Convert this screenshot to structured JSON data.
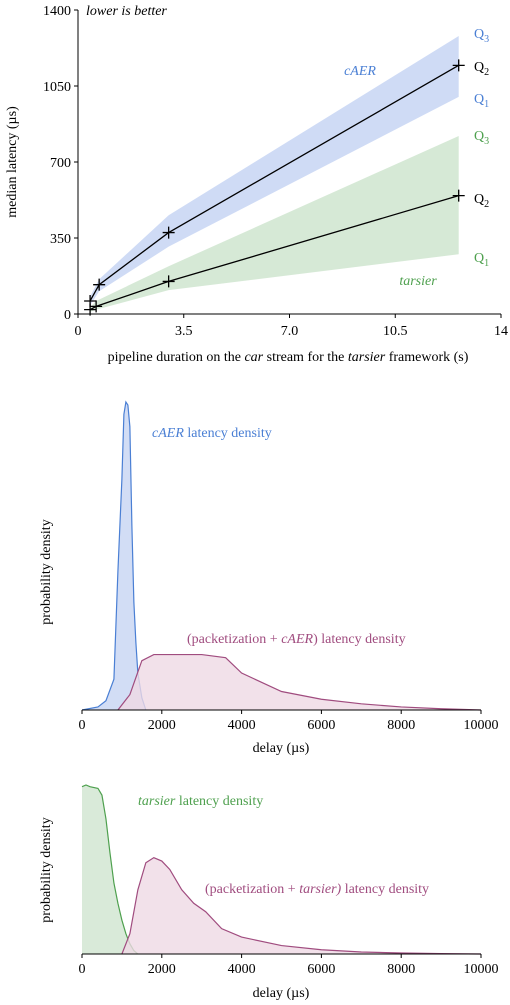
{
  "colors": {
    "caer": "#4a7fd4",
    "caer_fill": "#c7d5f3",
    "tarsier": "#4ea04e",
    "tarsier_fill": "#cfe5cf",
    "pack": "#a04c7f",
    "pack_fill": "#efd9e5",
    "axis": "#000000"
  },
  "chart_data": [
    {
      "type": "line",
      "annotation": "lower is better",
      "xlabel": {
        "pre": "pipeline duration on the ",
        "i1": "car",
        "mid": " stream for the ",
        "i2": "tarsier",
        "post": " framework (s)"
      },
      "ylabel": "median latency (µs)",
      "xlim": [
        0,
        14
      ],
      "ylim": [
        0,
        1400
      ],
      "xticks": [
        "0",
        "3.5",
        "7.0",
        "10.5",
        "14"
      ],
      "yticks": [
        "0",
        "350",
        "700",
        "1050",
        "1400"
      ],
      "series": [
        {
          "name": "cAER",
          "x": [
            0.4,
            0.7,
            3.0,
            12.6
          ],
          "q1": [
            40,
            105,
            310,
            1000
          ],
          "q2": [
            60,
            135,
            375,
            1145
          ],
          "q3": [
            80,
            160,
            455,
            1280
          ],
          "q1_label": "Q",
          "q1_sub": "1",
          "q2_label": "Q",
          "q2_sub": "2",
          "q3_label": "Q",
          "q3_sub": "3"
        },
        {
          "name": "tarsier",
          "x": [
            0.4,
            0.6,
            3.0,
            12.6
          ],
          "q1": [
            10,
            20,
            110,
            275
          ],
          "q2": [
            20,
            35,
            150,
            545
          ],
          "q3": [
            30,
            60,
            220,
            820
          ],
          "q1_label": "Q",
          "q1_sub": "1",
          "q2_label": "Q",
          "q2_sub": "2",
          "q3_label": "Q",
          "q3_sub": "3"
        }
      ]
    },
    {
      "type": "area",
      "ylabel": "probability density",
      "xlabel": "delay (µs)",
      "xlim": [
        0,
        10000
      ],
      "xticks": [
        "0",
        "2000",
        "4000",
        "6000",
        "8000",
        "10000"
      ],
      "series": [
        {
          "name": "cAER latency density",
          "name_italic": "cAER",
          "name_rest": " latency density",
          "x": [
            0,
            400,
            600,
            800,
            900,
            1000,
            1050,
            1100,
            1150,
            1200,
            1250,
            1300,
            1350,
            1400,
            1500,
            1600
          ],
          "y": [
            0.0,
            0.01,
            0.03,
            0.1,
            0.45,
            0.75,
            0.96,
            1.0,
            0.99,
            0.92,
            0.6,
            0.35,
            0.22,
            0.12,
            0.04,
            0.0
          ]
        },
        {
          "name": "(packetization + cAER) latency density",
          "name_pre": "(packetization + ",
          "name_italic": "cAER",
          "name_post": ") latency density",
          "x": [
            900,
            1200,
            1500,
            1800,
            2200,
            3000,
            3600,
            4000,
            4500,
            5000,
            6000,
            7000,
            8000,
            9000,
            10000
          ],
          "y": [
            0.0,
            0.05,
            0.16,
            0.18,
            0.18,
            0.18,
            0.17,
            0.12,
            0.09,
            0.06,
            0.035,
            0.02,
            0.01,
            0.004,
            0.0
          ]
        }
      ]
    },
    {
      "type": "area",
      "ylabel": "probability density",
      "xlabel": "delay (µs)",
      "xlim": [
        0,
        10000
      ],
      "xticks": [
        "0",
        "2000",
        "4000",
        "6000",
        "8000",
        "10000"
      ],
      "series": [
        {
          "name": "tarsier latency density",
          "name_italic": "tarsier",
          "name_rest": " latency density",
          "x": [
            0,
            100,
            200,
            400,
            500,
            600,
            700,
            800,
            900,
            1000,
            1100,
            1200,
            1300,
            1400
          ],
          "y": [
            0.99,
            1.0,
            0.99,
            0.98,
            0.94,
            0.8,
            0.6,
            0.42,
            0.3,
            0.2,
            0.12,
            0.06,
            0.02,
            0.0
          ]
        },
        {
          "name": "(packetization + tarsier) latency density",
          "name_pre": "(packetization + ",
          "name_italic": "tarsier)",
          "name_post": " latency density",
          "x": [
            1000,
            1200,
            1400,
            1600,
            1800,
            2000,
            2200,
            2500,
            2800,
            3100,
            3500,
            4000,
            5000,
            6000,
            7000,
            8000,
            9000,
            10000
          ],
          "y": [
            0.0,
            0.12,
            0.38,
            0.54,
            0.57,
            0.55,
            0.5,
            0.38,
            0.3,
            0.25,
            0.15,
            0.1,
            0.05,
            0.025,
            0.012,
            0.006,
            0.002,
            0.0
          ]
        }
      ]
    }
  ]
}
